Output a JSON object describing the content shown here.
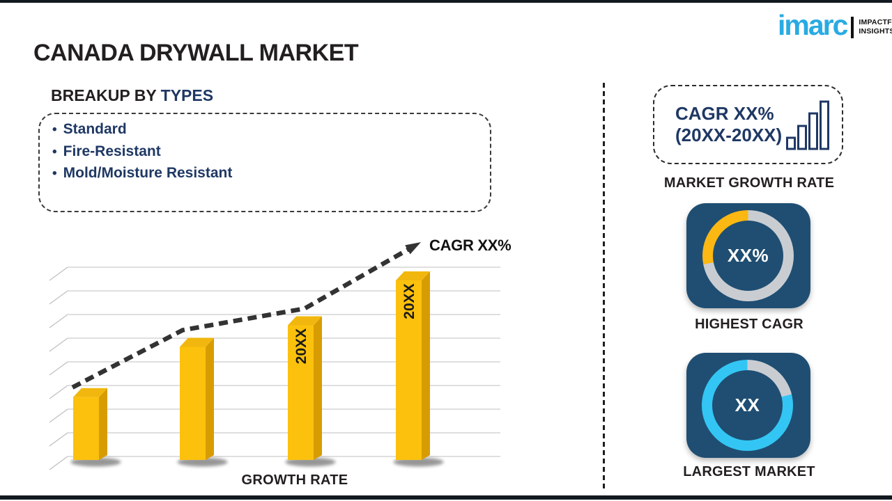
{
  "frame": {
    "bar_color": "#12191f"
  },
  "logo": {
    "brand": "imarc",
    "tagline_line1": "IMPACTFUL",
    "tagline_line2": "INSIGHTS",
    "brand_color": "#29abe2"
  },
  "title": "CANADA DRYWALL MARKET",
  "breakup": {
    "heading_prefix": "BREAKUP BY ",
    "heading_highlight": "TYPES",
    "bullet": "•",
    "items": [
      "Standard",
      "Fire-Resistant",
      "Mold/Moisture Resistant"
    ]
  },
  "chart_data": {
    "type": "bar",
    "note": "relative bar heights; no numeric axis shown in image",
    "values": [
      35,
      63,
      75,
      100
    ],
    "bar_labels": [
      "",
      "",
      "20XX",
      "20XX"
    ],
    "xlabel": "GROWTH RATE",
    "trend_label": "CAGR XX%",
    "trend_style": "dashed-arrow",
    "grid": true,
    "bar_color": "#fcc10d",
    "bar_side_color": "#d89c03",
    "bar_top_color": "#f2b70e",
    "trend_color": "#333333"
  },
  "right_panel": {
    "cagr_box": {
      "line1": "CAGR XX%",
      "line2": "(20XX-20XX)"
    },
    "market_growth_rate_label": "MARKET GROWTH RATE",
    "donuts": [
      {
        "value": "XX%",
        "label": "HIGHEST CAGR",
        "value_color": "#fbb712",
        "track_color": "#c9cdd2",
        "value_deg": 101,
        "card_color": "#1f4e72"
      },
      {
        "value": "XX",
        "label": "LARGEST MARKET",
        "value_color": "#33c6f4",
        "track_color": "#c9cdd2",
        "value_deg": 284,
        "card_color": "#1f4e72"
      }
    ]
  },
  "accent_colors": {
    "navy_text": "#1f3864",
    "dark_text": "#231f20"
  }
}
